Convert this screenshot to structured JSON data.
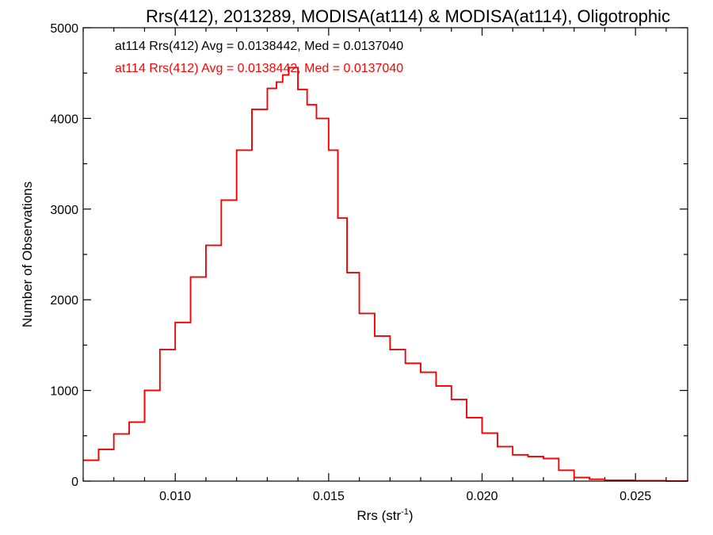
{
  "chart_data": {
    "type": "line",
    "title": "Rrs(412), 2013289, MODISA(at114) & MODISA(at114), Oligotrophic",
    "xlabel": "Rrs (str",
    "xlabel_sup": "-1",
    "xlabel_suffix": ")",
    "ylabel": "Number of Observations",
    "xlim": [
      0.007,
      0.0267
    ],
    "ylim": [
      0,
      5000
    ],
    "x_ticks": [
      0.01,
      0.015,
      0.02,
      0.025
    ],
    "x_tick_labels": [
      "0.010",
      "0.015",
      "0.020",
      "0.025"
    ],
    "y_ticks": [
      0,
      1000,
      2000,
      3000,
      4000,
      5000
    ],
    "y_tick_labels": [
      "0",
      "1000",
      "2000",
      "3000",
      "4000",
      "5000"
    ],
    "grid": false,
    "legend_placement": "top-left",
    "annotations": [
      {
        "text": "at114 Rrs(412) Avg = 0.0138442, Med = 0.0137040",
        "color": "#000000"
      },
      {
        "text": "at114 Rrs(412) Avg = 0.0138442, Med = 0.0137040",
        "color": "#ff0000"
      }
    ],
    "series": [
      {
        "color": "#000000",
        "x": [
          0.007,
          0.0075,
          0.008,
          0.0085,
          0.009,
          0.0095,
          0.01,
          0.0105,
          0.011,
          0.0115,
          0.012,
          0.0125,
          0.013,
          0.0133,
          0.0135,
          0.0137,
          0.014,
          0.0143,
          0.0146,
          0.015,
          0.0153,
          0.0156,
          0.016,
          0.0165,
          0.017,
          0.0175,
          0.018,
          0.0185,
          0.019,
          0.0195,
          0.02,
          0.0205,
          0.021,
          0.0215,
          0.022,
          0.0225,
          0.023,
          0.0235,
          0.024,
          0.025,
          0.026,
          0.0267
        ],
        "y": [
          230,
          350,
          520,
          650,
          1000,
          1450,
          1750,
          2250,
          2600,
          3100,
          3650,
          4100,
          4330,
          4400,
          4480,
          4560,
          4320,
          4150,
          4000,
          3650,
          2900,
          2300,
          1850,
          1600,
          1450,
          1300,
          1200,
          1050,
          900,
          700,
          530,
          380,
          290,
          270,
          250,
          120,
          40,
          20,
          10,
          5,
          2,
          0
        ]
      },
      {
        "color": "#ff0000",
        "x": [
          0.007,
          0.0075,
          0.008,
          0.0085,
          0.009,
          0.0095,
          0.01,
          0.0105,
          0.011,
          0.0115,
          0.012,
          0.0125,
          0.013,
          0.0133,
          0.0135,
          0.0137,
          0.014,
          0.0143,
          0.0146,
          0.015,
          0.0153,
          0.0156,
          0.016,
          0.0165,
          0.017,
          0.0175,
          0.018,
          0.0185,
          0.019,
          0.0195,
          0.02,
          0.0205,
          0.021,
          0.0215,
          0.022,
          0.0225,
          0.023,
          0.0235,
          0.024,
          0.025,
          0.026,
          0.0267
        ],
        "y": [
          230,
          350,
          520,
          650,
          1000,
          1450,
          1750,
          2250,
          2600,
          3100,
          3650,
          4100,
          4330,
          4400,
          4480,
          4560,
          4320,
          4150,
          4000,
          3650,
          2900,
          2300,
          1850,
          1600,
          1450,
          1300,
          1200,
          1050,
          900,
          700,
          530,
          380,
          290,
          270,
          250,
          120,
          40,
          20,
          10,
          5,
          2,
          0
        ]
      }
    ]
  }
}
